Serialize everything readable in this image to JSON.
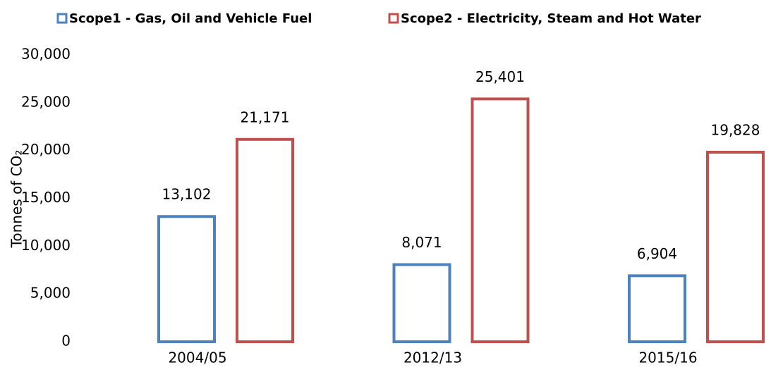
{
  "chart_data": {
    "type": "bar",
    "y_label": "Tonnes of CO₂",
    "categories": [
      "2004/05",
      "2012/13",
      "2015/16"
    ],
    "series": [
      {
        "name": "Scope1 - Gas, Oil and Vehicle Fuel",
        "color": "#4f81bd",
        "values": [
          13102,
          8071,
          6904
        ],
        "value_labels": [
          "13,102",
          "8,071",
          "6,904"
        ]
      },
      {
        "name": "Scope2 - Electricity, Steam and Hot Water",
        "color": "#c0504d",
        "values": [
          21171,
          25401,
          19828
        ],
        "value_labels": [
          "21,171",
          "25,401",
          "19,828"
        ]
      }
    ],
    "ylim": [
      0,
      30000
    ],
    "yticks": [
      {
        "value": 0,
        "label": "0"
      },
      {
        "value": 5000,
        "label": "5,000"
      },
      {
        "value": 10000,
        "label": "10,000"
      },
      {
        "value": 15000,
        "label": "15,000"
      },
      {
        "value": 20000,
        "label": "20,000"
      },
      {
        "value": 25000,
        "label": "25,000"
      },
      {
        "value": 30000,
        "label": "30,000"
      }
    ],
    "grid": false,
    "legend": "top"
  }
}
